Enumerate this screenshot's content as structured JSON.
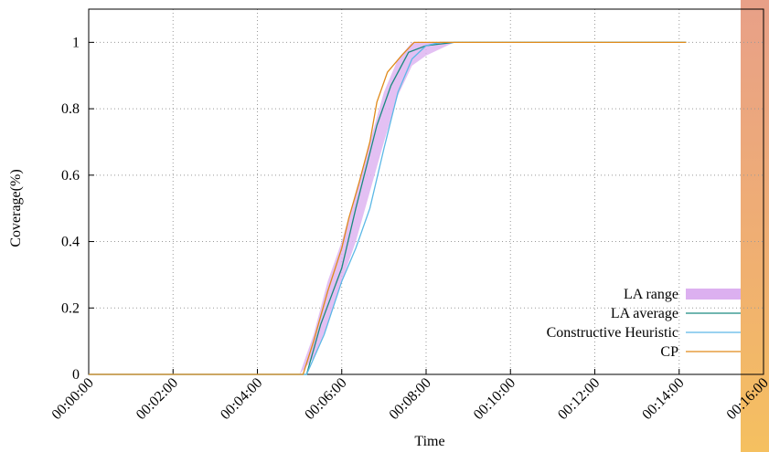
{
  "chart_data": {
    "type": "line",
    "xlabel": "Time",
    "ylabel": "Coverage(%)",
    "xlim": [
      0,
      960
    ],
    "ylim": [
      0,
      1.1
    ],
    "xticks": [
      {
        "value": 0,
        "label": "00:00:00"
      },
      {
        "value": 120,
        "label": "00:02:00"
      },
      {
        "value": 240,
        "label": "00:04:00"
      },
      {
        "value": 360,
        "label": "00:06:00"
      },
      {
        "value": 480,
        "label": "00:08:00"
      },
      {
        "value": 600,
        "label": "00:10:00"
      },
      {
        "value": 720,
        "label": "00:12:00"
      },
      {
        "value": 840,
        "label": "00:14:00"
      },
      {
        "value": 960,
        "label": "00:16:00"
      }
    ],
    "yticks": [
      0,
      0.2,
      0.4,
      0.6,
      0.8,
      1
    ],
    "grid": true,
    "legend": "bottom-right",
    "series": [
      {
        "name": "LA range",
        "color": "#dcb0f0",
        "kind": "range",
        "x": [
          300,
          320,
          340,
          360,
          380,
          400,
          420,
          440,
          460,
          480,
          500,
          520,
          540
        ],
        "low": [
          0,
          0.05,
          0.15,
          0.28,
          0.4,
          0.55,
          0.7,
          0.84,
          0.93,
          0.96,
          0.98,
          1,
          1
        ],
        "high": [
          0,
          0.12,
          0.28,
          0.4,
          0.55,
          0.7,
          0.85,
          0.95,
          1,
          1,
          1,
          1,
          1
        ]
      },
      {
        "name": "LA average",
        "color": "#1a8a80",
        "x": [
          0,
          310,
          330,
          360,
          380,
          410,
          430,
          455,
          480,
          520,
          850
        ],
        "values": [
          0,
          0,
          0.15,
          0.32,
          0.5,
          0.75,
          0.87,
          0.97,
          0.99,
          1,
          1
        ]
      },
      {
        "name": "Constructive Heuristic",
        "color": "#5cb8e6",
        "x": [
          0,
          310,
          335,
          360,
          380,
          400,
          420,
          440,
          460,
          480,
          500,
          850
        ],
        "values": [
          0,
          0,
          0.12,
          0.28,
          0.38,
          0.5,
          0.68,
          0.85,
          0.95,
          0.99,
          1,
          1
        ]
      },
      {
        "name": "CP",
        "color": "#e08a1a",
        "x": [
          0,
          305,
          320,
          340,
          360,
          370,
          385,
          400,
          410,
          425,
          445,
          463,
          850
        ],
        "values": [
          0,
          0,
          0.1,
          0.25,
          0.38,
          0.47,
          0.58,
          0.7,
          0.82,
          0.91,
          0.96,
          1,
          1
        ]
      }
    ]
  }
}
